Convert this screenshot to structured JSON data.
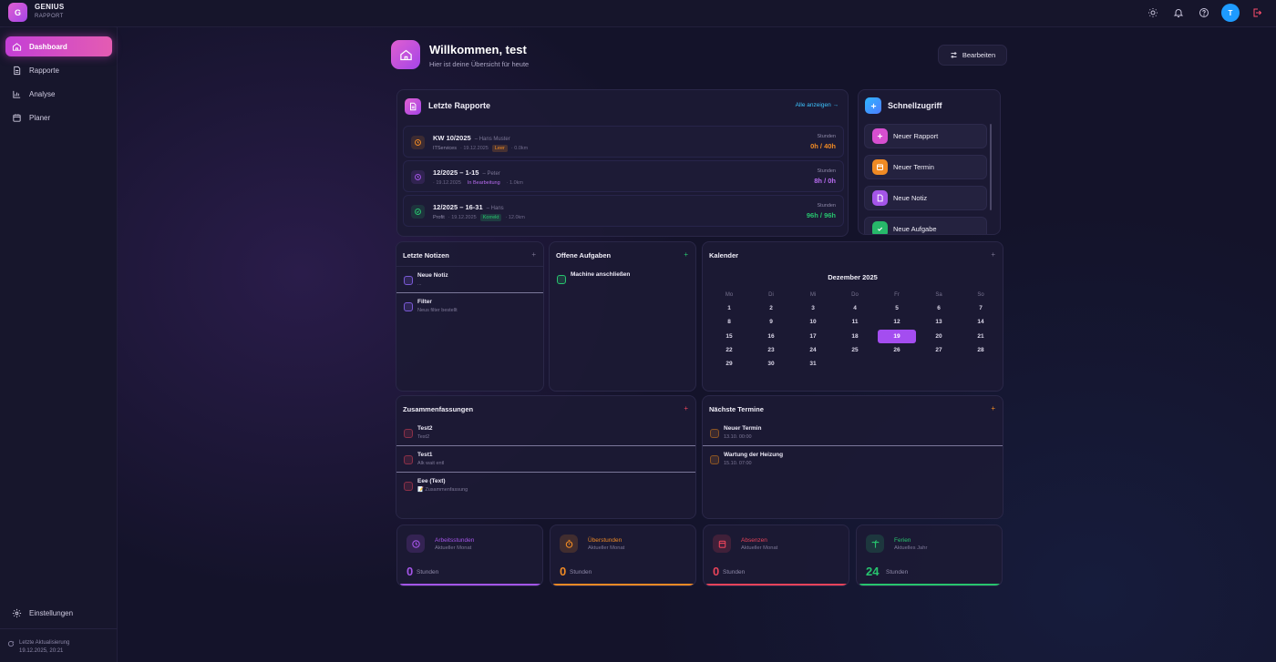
{
  "app": {
    "logo_letter": "G",
    "name": "GENIUS",
    "subtitle": "RAPPORT",
    "avatar_letter": "T"
  },
  "sidebar": {
    "items": [
      {
        "label": "Dashboard",
        "icon": "home-icon",
        "active": true
      },
      {
        "label": "Rapporte",
        "icon": "document-icon"
      },
      {
        "label": "Analyse",
        "icon": "chart-icon"
      },
      {
        "label": "Planer",
        "icon": "calendar-icon"
      }
    ],
    "settings_label": "Einstellungen",
    "last_update_label": "Letzte Aktualisierung",
    "last_update_value": "19.12.2025, 20:21"
  },
  "header": {
    "title": "Willkommen, test",
    "subtitle": "Hier ist deine Übersicht für heute",
    "edit_label": "Bearbeiten"
  },
  "rapporte": {
    "title": "Letzte Rapporte",
    "show_all": "Alle anzeigen →",
    "rows": [
      {
        "title": "KW 10/2025",
        "person": "– Hans Muster",
        "company": "ITServices",
        "date": "· 19.12.2025",
        "badge": "Leer",
        "extra": "· 0.0km",
        "hours_label": "Stunden",
        "hours": "0h / 40h"
      },
      {
        "title": "12/2025 – 1-15",
        "person": "– Peter",
        "company": "",
        "date": "· 19.12.2025",
        "badge": "In Bearbeitung",
        "extra": "· 1.0km",
        "hours_label": "Stunden",
        "hours": "8h / 0h"
      },
      {
        "title": "12/2025 – 16-31",
        "person": "– Hans",
        "company": "Profit",
        "date": "· 19.12.2025",
        "badge": "Korrekt",
        "extra": "· 12.0km",
        "hours_label": "Stunden",
        "hours": "96h / 96h"
      }
    ]
  },
  "schnellzugriff": {
    "title": "Schnellzugriff",
    "items": [
      {
        "label": "Neuer Rapport",
        "color": "#d64fd0"
      },
      {
        "label": "Neuer Termin",
        "color": "#f08a24"
      },
      {
        "label": "Neue Notiz",
        "color": "#a455e8"
      },
      {
        "label": "Neue Aufgabe",
        "color": "#27b86a"
      }
    ]
  },
  "notizen": {
    "title": "Letzte Notizen",
    "items": [
      {
        "title": "Neue Notiz",
        "sub": "..."
      },
      {
        "title": "Filter",
        "sub": "Neus filter bestellt"
      }
    ]
  },
  "aufgaben": {
    "title": "Offene Aufgaben",
    "items": [
      {
        "title": "Machine anschließen"
      }
    ]
  },
  "kalender": {
    "title": "Kalender",
    "month": "Dezember 2025",
    "weekdays": [
      "Mo",
      "Di",
      "Mi",
      "Do",
      "Fr",
      "Sa",
      "So"
    ],
    "start_offset": 0,
    "days": 31,
    "today": 19
  },
  "zusammenfassungen": {
    "title": "Zusammenfassungen",
    "items": [
      {
        "title": "Test2",
        "sub": "Test2"
      },
      {
        "title": "Test1",
        "sub": "Alk wait entl"
      },
      {
        "title": "Eee (Text)",
        "sub": "📝 Zusammenfassung"
      }
    ]
  },
  "termine": {
    "title": "Nächste Termine",
    "items": [
      {
        "title": "Neuer Termin",
        "sub": "13.10. 00:00"
      },
      {
        "title": "Wartung der Heizung",
        "sub": "15.10. 07:00"
      }
    ]
  },
  "stats": [
    {
      "title": "Arbeitsstunden",
      "sub": "Aktueller Monat",
      "value": "0",
      "unit": "Stunden",
      "color": "#a455e8"
    },
    {
      "title": "Überstunden",
      "sub": "Aktueller Monat",
      "value": "0",
      "unit": "Stunden",
      "color": "#f08a24"
    },
    {
      "title": "Absenzen",
      "sub": "Aktueller Monat",
      "value": "0",
      "unit": "Stunden",
      "color": "#e8435a"
    },
    {
      "title": "Ferien",
      "sub": "Aktuelles Jahr",
      "value": "24",
      "unit": "Stunden",
      "color": "#27c46e"
    }
  ]
}
